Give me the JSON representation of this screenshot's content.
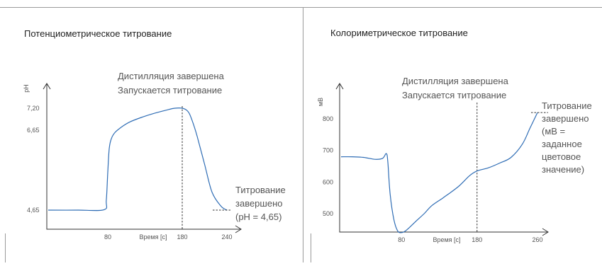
{
  "chart_data": [
    {
      "type": "line",
      "title": "Потенциометрическое титрование",
      "xlabel": "Время [с]",
      "ylabel": "pH",
      "x_ticks": [
        80,
        180,
        240
      ],
      "y_ticks": [
        "7,20",
        "6,65",
        "4,65"
      ],
      "y_tick_values": [
        7.2,
        6.65,
        4.65
      ],
      "annotation_top": [
        "Дистилляция завершена",
        "Запускается титрование"
      ],
      "annotation_end": [
        "Титрование",
        "завершено",
        "(pH = 4,65)"
      ],
      "marker_x": 180,
      "endpoint_y": 4.65,
      "series": [
        {
          "x": [
            0,
            40,
            75,
            78,
            80,
            82,
            85,
            90,
            100,
            110,
            125,
            140,
            160,
            170,
            180,
            186,
            190,
            195,
            200,
            210,
            220,
            232,
            240
          ],
          "y": [
            4.65,
            4.65,
            4.66,
            4.9,
            5.6,
            6.2,
            6.45,
            6.6,
            6.75,
            6.86,
            6.97,
            7.06,
            7.16,
            7.2,
            7.2,
            7.15,
            7.05,
            6.8,
            6.5,
            5.8,
            5.1,
            4.75,
            4.65
          ]
        }
      ]
    },
    {
      "type": "line",
      "title": "Колориметрическое титрование",
      "xlabel": "Время [с]",
      "ylabel": "мВ",
      "x_ticks": [
        80,
        180,
        260
      ],
      "y_ticks": [
        "800",
        "700",
        "600",
        "500"
      ],
      "y_tick_values": [
        800,
        700,
        600,
        500
      ],
      "annotation_top": [
        "Дистилляция завершена",
        "Запускается титрование"
      ],
      "annotation_end": [
        "Титрование",
        "завершено",
        "(мВ =",
        "заданное",
        "цветовое",
        "значение)"
      ],
      "marker_x": 180,
      "endpoint_y": 820,
      "series": [
        {
          "x": [
            0,
            15,
            30,
            45,
            55,
            60,
            62,
            65,
            70,
            75,
            80,
            85,
            90,
            100,
            110,
            120,
            135,
            155,
            170,
            180,
            195,
            210,
            225,
            240,
            250,
            260
          ],
          "y": [
            680,
            680,
            678,
            672,
            675,
            690,
            660,
            560,
            480,
            445,
            440,
            445,
            455,
            478,
            500,
            525,
            550,
            585,
            620,
            635,
            645,
            660,
            678,
            720,
            770,
            820
          ]
        }
      ]
    }
  ]
}
